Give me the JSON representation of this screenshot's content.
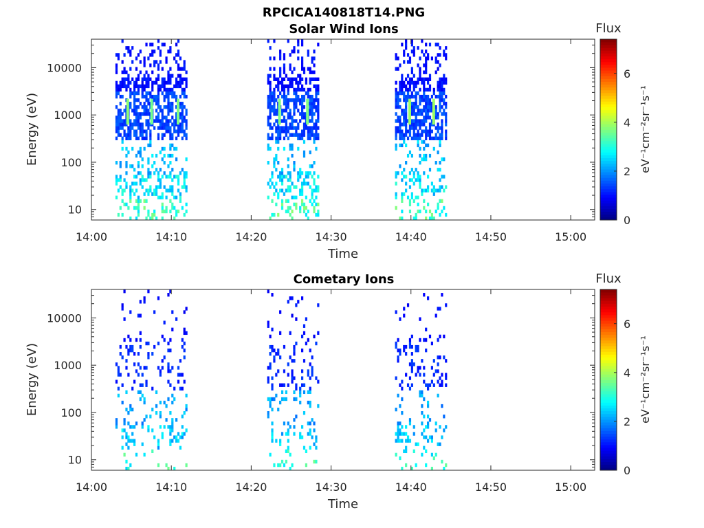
{
  "figure_title": "RPCICA140818T14.PNG",
  "chart_data": [
    {
      "type": "heatmap",
      "title": "Solar Wind Ions",
      "xlabel": "Time",
      "ylabel": "Energy (eV)",
      "xlim": [
        "14:00",
        "15:03"
      ],
      "ylim": [
        6,
        40000
      ],
      "yscale": "log",
      "x_ticks": [
        "14:00",
        "14:10",
        "14:20",
        "14:30",
        "14:40",
        "14:50",
        "15:00"
      ],
      "y_ticks": [
        "10",
        "100",
        "1000",
        "10000"
      ],
      "colorbar": {
        "label": "Flux",
        "units": "eV⁻¹cm⁻²sr⁻¹s⁻¹",
        "min": 0,
        "max": 7.4,
        "ticks": [
          "0",
          "2",
          "4",
          "6"
        ],
        "colormap": "jet"
      },
      "active_intervals": [
        {
          "start": "14:03",
          "end": "14:12"
        },
        {
          "start": "14:22",
          "end": "14:28.5"
        },
        {
          "start": "14:38",
          "end": "14:44.5"
        }
      ],
      "peaks": [
        {
          "time": "14:04.5",
          "energy": 1000,
          "flux": 3.8
        },
        {
          "time": "14:07.5",
          "energy": 1000,
          "flux": 3.6
        },
        {
          "time": "14:10.8",
          "energy": 1000,
          "flux": 3.7
        },
        {
          "time": "14:23.5",
          "energy": 1000,
          "flux": 3.7
        },
        {
          "time": "14:27",
          "energy": 1000,
          "flux": 3.7
        },
        {
          "time": "14:39.8",
          "energy": 1000,
          "flux": 3.9
        },
        {
          "time": "14:42.8",
          "energy": 1000,
          "flux": 3.9
        }
      ],
      "energy_band_flux": [
        {
          "energy": 10,
          "flux": 3.2
        },
        {
          "energy": 30,
          "flux": 2.6
        },
        {
          "energy": 100,
          "flux": 2.3
        },
        {
          "energy": 1000,
          "flux": 1.4
        },
        {
          "energy": 10000,
          "flux": 1.0
        }
      ]
    },
    {
      "type": "heatmap",
      "title": "Cometary Ions",
      "xlabel": "Time",
      "ylabel": "Energy (eV)",
      "xlim": [
        "14:00",
        "15:03"
      ],
      "ylim": [
        6,
        40000
      ],
      "yscale": "log",
      "x_ticks": [
        "14:00",
        "14:10",
        "14:20",
        "14:30",
        "14:40",
        "14:50",
        "15:00"
      ],
      "y_ticks": [
        "10",
        "100",
        "1000",
        "10000"
      ],
      "colorbar": {
        "label": "Flux",
        "units": "eV⁻¹cm⁻²sr⁻¹s⁻¹",
        "min": 0,
        "max": 7.4,
        "ticks": [
          "0",
          "2",
          "4",
          "6"
        ],
        "colormap": "jet"
      },
      "active_intervals": [
        {
          "start": "14:03",
          "end": "14:12"
        },
        {
          "start": "14:22",
          "end": "14:28.5"
        },
        {
          "start": "14:38",
          "end": "14:44.5"
        }
      ],
      "energy_band_flux": [
        {
          "energy": 10,
          "flux": 3.0
        },
        {
          "energy": 30,
          "flux": 2.4
        },
        {
          "energy": 100,
          "flux": 2.1
        },
        {
          "energy": 1000,
          "flux": 1.2
        },
        {
          "energy": 10000,
          "flux": 1.0
        }
      ]
    }
  ]
}
